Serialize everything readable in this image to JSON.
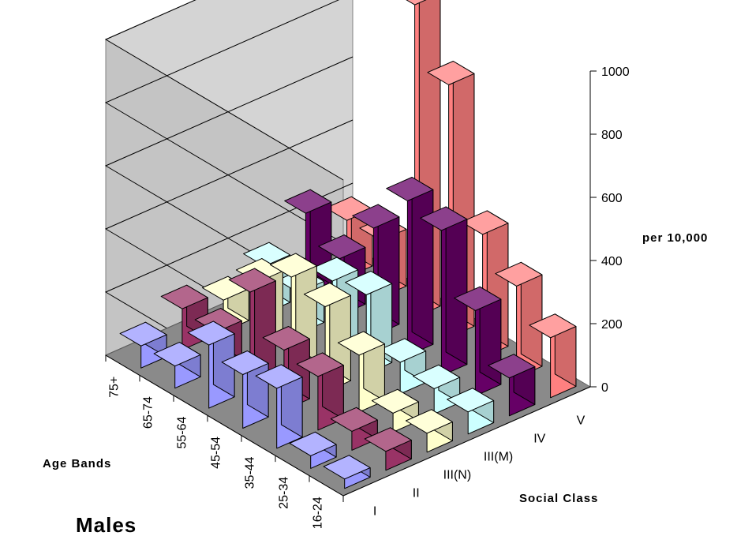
{
  "chart_data": {
    "type": "bar3d",
    "title": "Males",
    "xlabel": "Social Class",
    "ylabel": "Age Bands",
    "zlabel": "per 10,000",
    "social_classes": [
      "I",
      "II",
      "III(N)",
      "III(M)",
      "IV",
      "V"
    ],
    "age_bands": [
      "16-24",
      "25-34",
      "35-44",
      "45-54",
      "55-64",
      "65-74",
      "75+"
    ],
    "zlim": [
      0,
      1000
    ],
    "zticks": [
      0,
      200,
      400,
      600,
      800,
      1000
    ],
    "grid": true,
    "series": [
      {
        "name": "I",
        "color": "#9999ff",
        "values": [
          30,
          40,
          190,
          170,
          200,
          70,
          70
        ]
      },
      {
        "name": "II",
        "color": "#993366",
        "values": [
          60,
          60,
          170,
          190,
          310,
          120,
          130
        ]
      },
      {
        "name": "III(N)",
        "color": "#ffffcc",
        "values": [
          60,
          60,
          180,
          270,
          300,
          220,
          100
        ]
      },
      {
        "name": "III(M)",
        "color": "#ccffff",
        "values": [
          70,
          80,
          100,
          250,
          230,
          130,
          150
        ]
      },
      {
        "name": "IV",
        "color": "#660066",
        "values": [
          120,
          270,
          460,
          490,
          340,
          180,
          260
        ]
      },
      {
        "name": "V",
        "color": "#ff8080",
        "values": [
          190,
          290,
          390,
          800,
          990,
          180,
          180
        ]
      }
    ]
  }
}
